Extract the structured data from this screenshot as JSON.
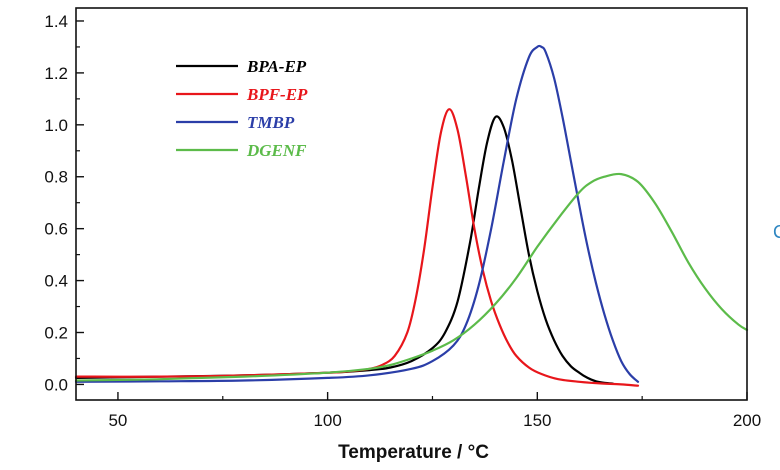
{
  "chart_data": {
    "type": "line",
    "title": "",
    "xlabel": "Temperature / °C",
    "ylabel": "",
    "xlim": [
      40,
      200
    ],
    "ylim": [
      -0.06,
      1.45
    ],
    "x_ticks": [
      50,
      100,
      150,
      200
    ],
    "y_ticks": [
      0.0,
      0.2,
      0.4,
      0.6,
      0.8,
      1.0,
      1.2,
      1.4
    ],
    "x_tick_labels": [
      "50",
      "100",
      "150",
      "200"
    ],
    "y_tick_labels": [
      "0.0",
      "0.2",
      "0.4",
      "0.6",
      "0.8",
      "1.0",
      "1.2",
      "1.4"
    ],
    "legend_position": "top-left",
    "grid": false,
    "series": [
      {
        "name": "BPA-EP",
        "color": "#000000",
        "x": [
          40,
          60,
          80,
          100,
          110,
          115,
          120,
          125,
          128,
          131,
          134,
          136,
          138,
          140,
          142,
          144,
          146,
          148,
          150,
          152,
          154,
          156,
          158,
          160,
          162,
          164,
          166,
          168
        ],
        "y": [
          0.025,
          0.03,
          0.035,
          0.045,
          0.055,
          0.065,
          0.09,
          0.14,
          0.2,
          0.32,
          0.55,
          0.75,
          0.93,
          1.03,
          0.99,
          0.86,
          0.68,
          0.5,
          0.36,
          0.25,
          0.17,
          0.11,
          0.07,
          0.045,
          0.025,
          0.012,
          0.006,
          0.003
        ]
      },
      {
        "name": "BPF-EP",
        "color": "#e8161b",
        "x": [
          40,
          60,
          80,
          100,
          105,
          110,
          113,
          116,
          119,
          121,
          123,
          125,
          127,
          129,
          131,
          133,
          135,
          137,
          139,
          141,
          143,
          145,
          148,
          151,
          155,
          160,
          165,
          170,
          174
        ],
        "y": [
          0.03,
          0.03,
          0.035,
          0.045,
          0.05,
          0.06,
          0.075,
          0.11,
          0.2,
          0.33,
          0.52,
          0.76,
          0.97,
          1.06,
          0.98,
          0.8,
          0.6,
          0.44,
          0.32,
          0.23,
          0.16,
          0.11,
          0.065,
          0.04,
          0.02,
          0.01,
          0.004,
          0.0,
          -0.005
        ]
      },
      {
        "name": "TMBP",
        "color": "#2b3ea8",
        "x": [
          40,
          60,
          80,
          100,
          110,
          120,
          125,
          130,
          133,
          136,
          139,
          142,
          145,
          148,
          150,
          151,
          152,
          154,
          156,
          158,
          160,
          162,
          164,
          166,
          168,
          170,
          172,
          174
        ],
        "y": [
          0.01,
          0.012,
          0.015,
          0.025,
          0.035,
          0.06,
          0.09,
          0.15,
          0.23,
          0.38,
          0.6,
          0.86,
          1.1,
          1.26,
          1.3,
          1.3,
          1.28,
          1.18,
          1.03,
          0.86,
          0.69,
          0.53,
          0.39,
          0.27,
          0.17,
          0.09,
          0.04,
          0.01
        ]
      },
      {
        "name": "DGENF",
        "color": "#5cbb4a",
        "x": [
          40,
          60,
          80,
          100,
          110,
          115,
          120,
          125,
          130,
          135,
          140,
          145,
          150,
          155,
          160,
          163,
          166,
          170,
          174,
          178,
          182,
          186,
          190,
          194,
          198,
          200
        ],
        "y": [
          0.015,
          0.02,
          0.03,
          0.045,
          0.06,
          0.075,
          0.1,
          0.13,
          0.17,
          0.23,
          0.31,
          0.41,
          0.53,
          0.64,
          0.74,
          0.78,
          0.8,
          0.81,
          0.78,
          0.7,
          0.59,
          0.47,
          0.37,
          0.29,
          0.23,
          0.21
        ]
      }
    ]
  },
  "edge_fragment": "C"
}
